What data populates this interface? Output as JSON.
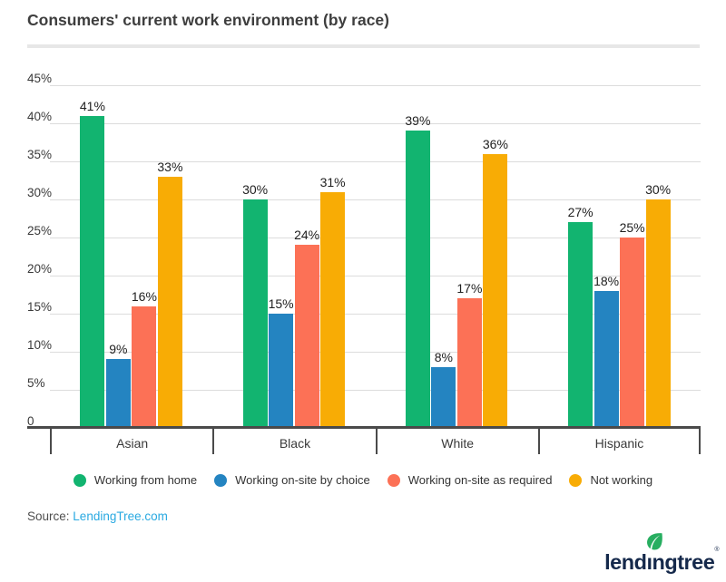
{
  "header": {
    "title": "Consumers' current work environment (by race)"
  },
  "chart_data": {
    "type": "bar",
    "title": "Consumers' current work environment (by race)",
    "categories": [
      "Asian",
      "Black",
      "White",
      "Hispanic"
    ],
    "series": [
      {
        "name": "Working from home",
        "color": "#12b470",
        "values": [
          41,
          30,
          39,
          27
        ]
      },
      {
        "name": "Working on-site by choice",
        "color": "#2484c1",
        "values": [
          9,
          15,
          8,
          18
        ]
      },
      {
        "name": "Working on-site as required",
        "color": "#fc7156",
        "values": [
          16,
          24,
          17,
          25
        ]
      },
      {
        "name": "Not working",
        "color": "#f8ac05",
        "values": [
          33,
          31,
          36,
          30
        ]
      }
    ],
    "ylim": [
      0,
      45
    ],
    "ytick_labels": [
      "45%",
      "40%",
      "35%",
      "30%",
      "25%",
      "20%",
      "15%",
      "10%",
      "5%",
      "0"
    ],
    "value_label_suffix": "%",
    "grid": "horizontal",
    "legend_position": "bottom"
  },
  "footer": {
    "source_label": "Source:",
    "source_link_text": "LendingTree.com",
    "source_link_color": "#29a9e1",
    "logo_text": "lendingtree",
    "logo_registered_mark": "®",
    "logo_text_color": "#15294b",
    "logo_leaf_color": "#27ae60"
  }
}
